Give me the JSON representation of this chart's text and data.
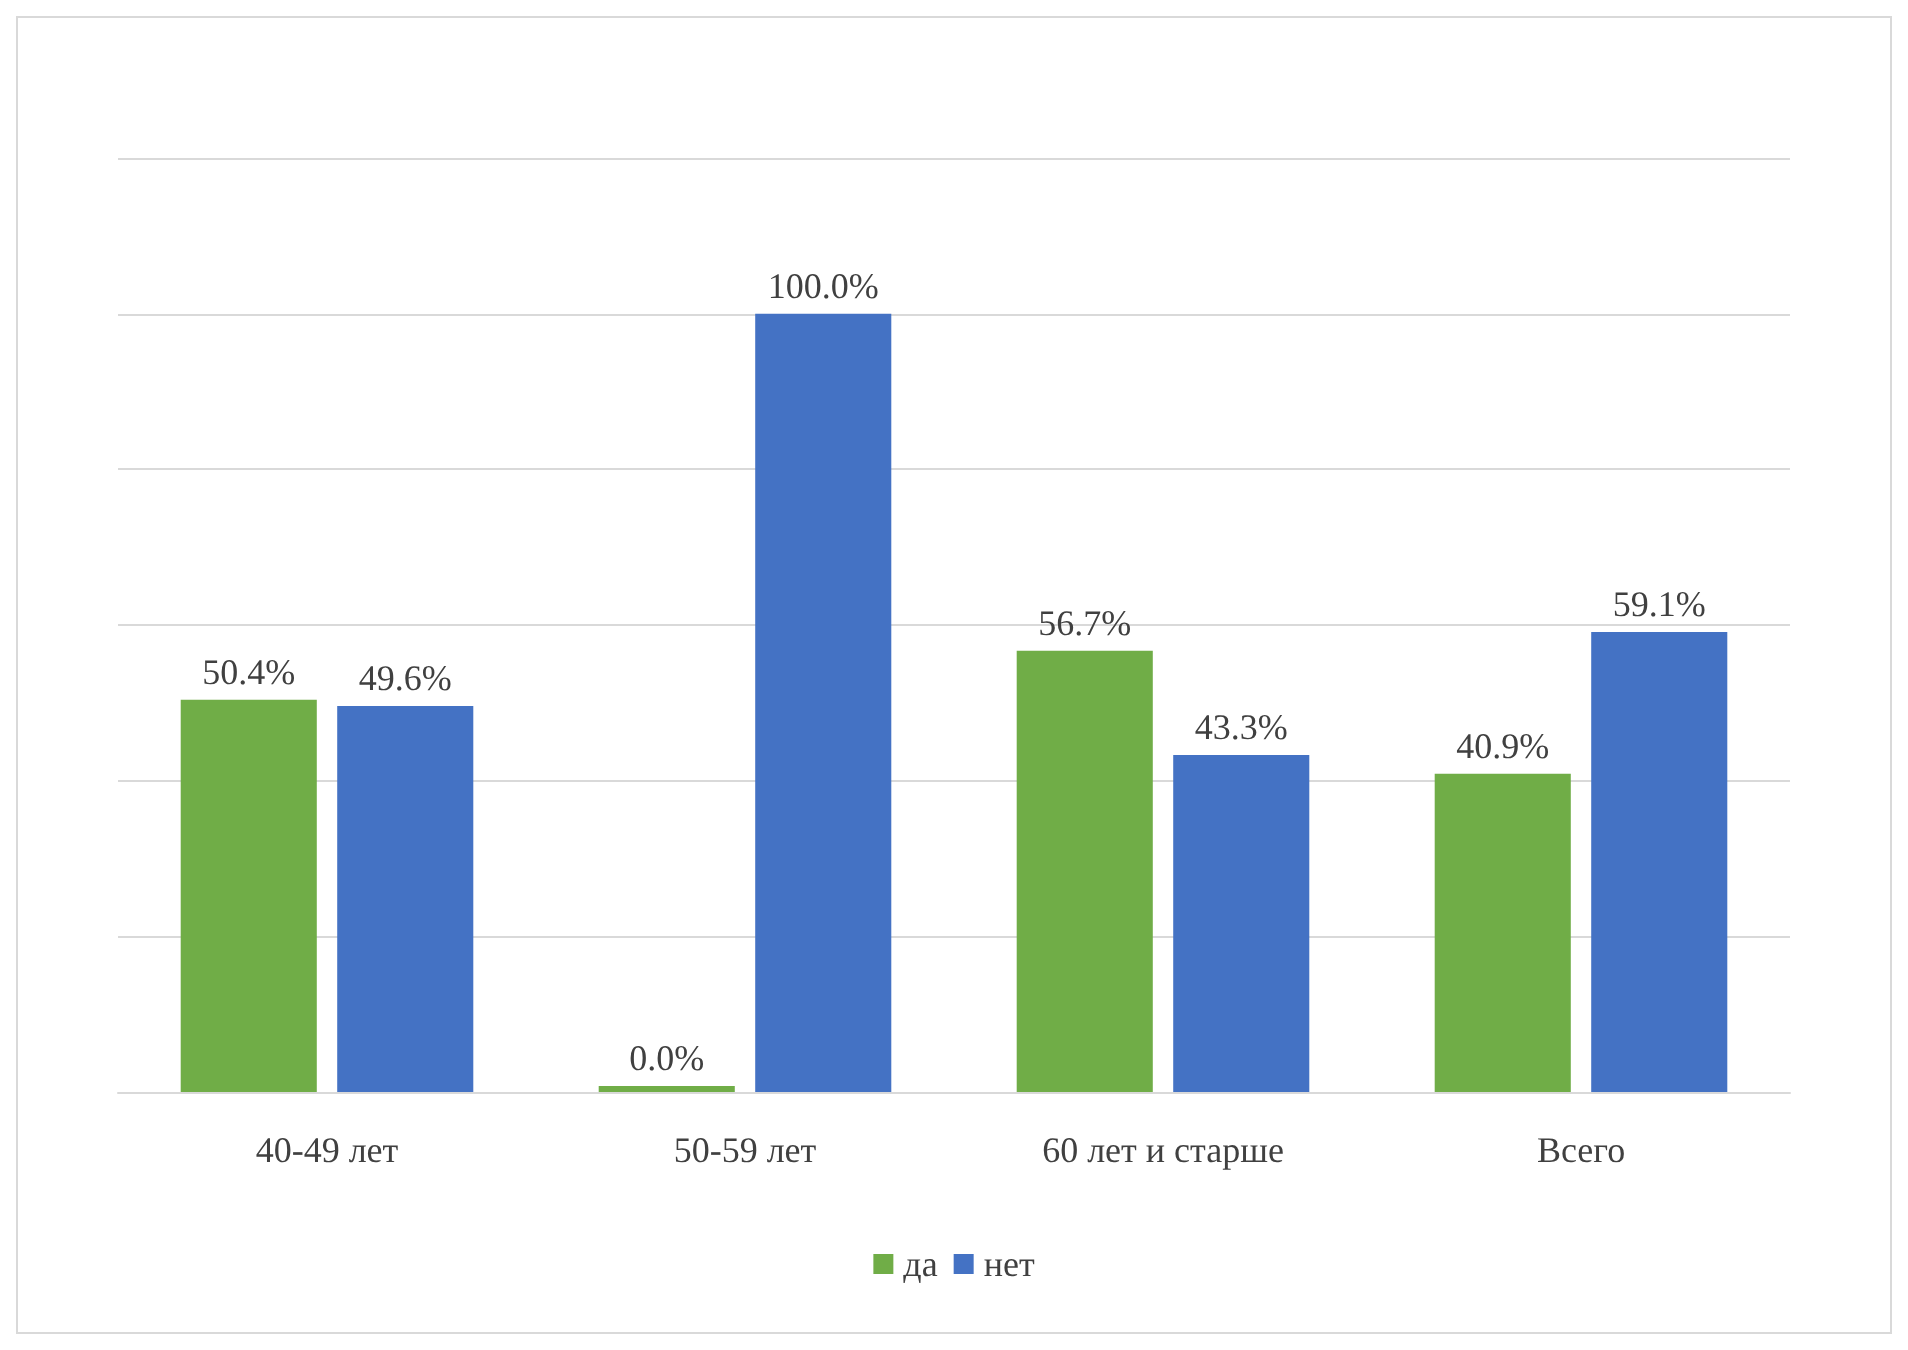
{
  "chart_data": {
    "type": "bar",
    "categories": [
      "40-49 лет",
      "50-59 лет",
      "60 лет и старше",
      "Всего"
    ],
    "series": [
      {
        "name": "да",
        "color": "#70ad47",
        "values": [
          50.4,
          0.0,
          56.7,
          40.9
        ],
        "value_labels": [
          "50.4%",
          "0.0%",
          "56.7%",
          "40.9%"
        ]
      },
      {
        "name": "нет",
        "color": "#4472c4",
        "values": [
          49.6,
          100.0,
          43.3,
          59.1
        ],
        "value_labels": [
          "49.6%",
          "100.0%",
          "43.3%",
          "59.1%"
        ]
      }
    ],
    "ylim": [
      0,
      120
    ],
    "yticks": [
      {
        "value": 0,
        "label": null
      },
      {
        "value": 20,
        "label": null
      },
      {
        "value": 40,
        "label": null
      },
      {
        "value": 60,
        "label": null
      },
      {
        "value": 80,
        "label": null
      },
      {
        "value": 100,
        "label": null
      },
      {
        "value": 120,
        "label": null
      }
    ],
    "grid": "y",
    "legend": "bottom",
    "tick_labels": "x"
  }
}
